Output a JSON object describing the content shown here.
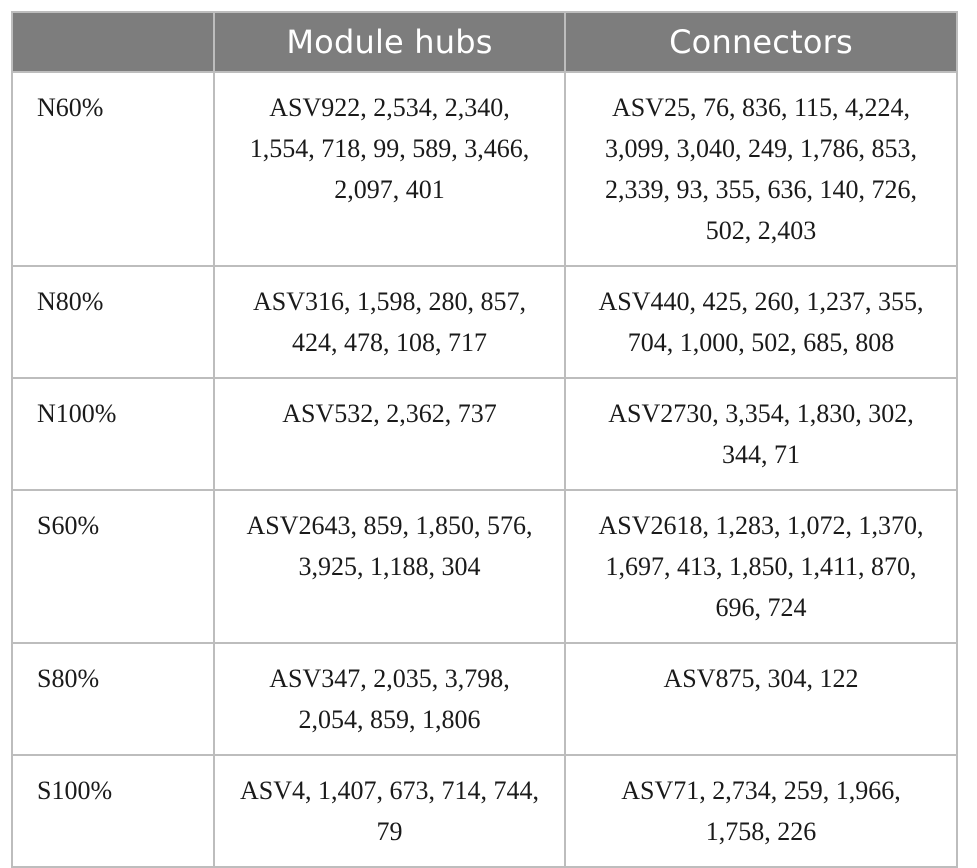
{
  "table": {
    "headers": [
      "",
      "Module hubs",
      "Connectors"
    ],
    "rows": [
      {
        "label": "N60%",
        "module_hubs": "ASV922, 2,534, 2,340, 1,554, 718, 99, 589, 3,466, 2,097, 401",
        "connectors": "ASV25, 76, 836, 115, 4,224, 3,099, 3,040, 249, 1,786, 853, 2,339, 93, 355, 636, 140, 726, 502, 2,403"
      },
      {
        "label": "N80%",
        "module_hubs": "ASV316, 1,598, 280, 857, 424, 478, 108, 717",
        "connectors": "ASV440, 425, 260, 1,237, 355, 704, 1,000, 502, 685, 808"
      },
      {
        "label": "N100%",
        "module_hubs": "ASV532, 2,362, 737",
        "connectors": "ASV2730, 3,354, 1,830, 302, 344, 71"
      },
      {
        "label": "S60%",
        "module_hubs": "ASV2643, 859, 1,850, 576, 3,925, 1,188, 304",
        "connectors": "ASV2618, 1,283, 1,072, 1,370, 1,697, 413, 1,850, 1,411, 870, 696, 724"
      },
      {
        "label": "S80%",
        "module_hubs": "ASV347, 2,035, 3,798, 2,054, 859, 1,806",
        "connectors": "ASV875, 304, 122"
      },
      {
        "label": "S100%",
        "module_hubs": "ASV4, 1,407, 673, 714, 744, 79",
        "connectors": "ASV71, 2,734, 259, 1,966, 1,758, 226"
      }
    ]
  },
  "colors": {
    "header_bg": "#7d7d7d",
    "header_text": "#ffffff",
    "border": "#bdbdbd",
    "body_text": "#1a1a1a"
  }
}
